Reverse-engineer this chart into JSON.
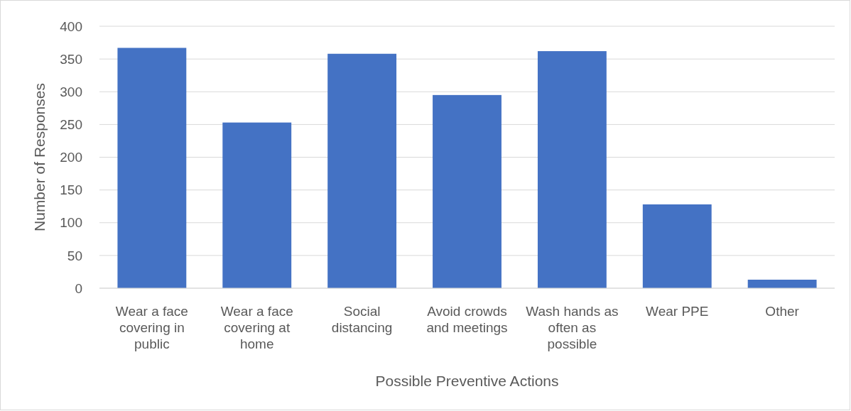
{
  "chart_data": {
    "type": "bar",
    "xlabel": "Possible Preventive Actions",
    "ylabel": "Number of Responses",
    "categories": [
      "Wear a face covering in public",
      "Wear a face covering at home",
      "Social distancing",
      "Avoid crowds and meetings",
      "Wash hands as often as possible",
      "Wear PPE",
      "Other"
    ],
    "values": [
      367,
      253,
      358,
      295,
      362,
      128,
      13
    ],
    "color": "#4472c4",
    "ylim": [
      0,
      400
    ],
    "yticks": [
      0,
      50,
      100,
      150,
      200,
      250,
      300,
      350,
      400
    ],
    "grid": "y"
  }
}
